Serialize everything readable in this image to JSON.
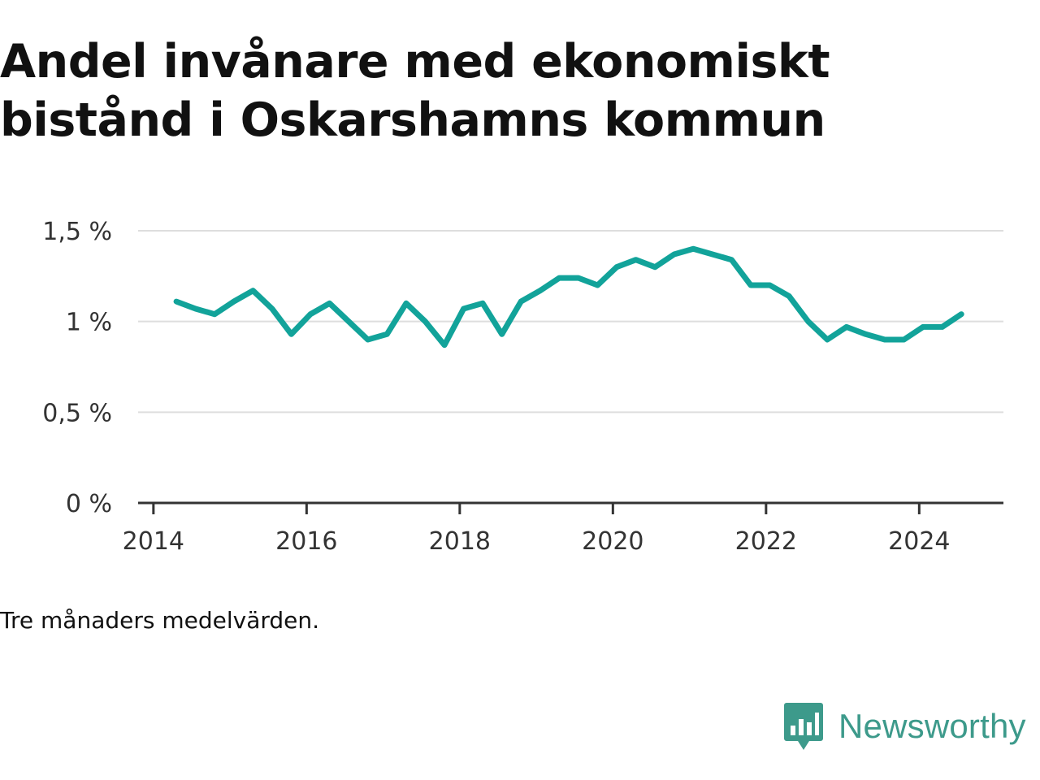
{
  "header": {
    "title_line1": "Andel invånare med ekonomiskt",
    "title_line2": "bistånd i Oskarshamns kommun"
  },
  "note": "Tre månaders medelvärden.",
  "logo": {
    "icon": "newsworthy-bar-chart-icon",
    "text": "Newsworthy",
    "color": "#3d9a8b"
  },
  "chart_data": {
    "type": "line",
    "title": "Andel invånare med ekonomiskt bistånd i Oskarshamns kommun",
    "xlabel": "",
    "ylabel": "",
    "xlim": [
      2013.8,
      2025.1
    ],
    "ylim": [
      0,
      1.5
    ],
    "x_ticks": [
      2014,
      2016,
      2018,
      2020,
      2022,
      2024
    ],
    "x_tick_labels": [
      "2014",
      "2016",
      "2018",
      "2020",
      "2022",
      "2024"
    ],
    "y_ticks": [
      0,
      0.5,
      1,
      1.5
    ],
    "y_tick_labels": [
      "0 %",
      "0,5 %",
      "1 %",
      "1,5 %"
    ],
    "grid": true,
    "color": "#12a39a",
    "series": [
      {
        "x": [
          2014.3,
          2014.55,
          2014.8,
          2015.05,
          2015.3,
          2015.55,
          2015.8,
          2016.05,
          2016.3,
          2016.55,
          2016.8,
          2017.05,
          2017.3,
          2017.55,
          2017.8,
          2018.05,
          2018.3,
          2018.55,
          2018.8,
          2019.05,
          2019.3,
          2019.55,
          2019.8,
          2020.05,
          2020.3,
          2020.55,
          2020.8,
          2021.05,
          2021.3,
          2021.55,
          2021.8,
          2022.05,
          2022.3,
          2022.55,
          2022.8,
          2023.05,
          2023.3,
          2023.55,
          2023.8,
          2024.05,
          2024.3,
          2024.55
        ],
        "y": [
          1.11,
          1.07,
          1.04,
          1.11,
          1.17,
          1.07,
          0.93,
          1.04,
          1.1,
          1.0,
          0.9,
          0.93,
          1.1,
          1.0,
          0.87,
          1.07,
          1.1,
          0.93,
          1.11,
          1.17,
          1.24,
          1.24,
          1.2,
          1.3,
          1.34,
          1.3,
          1.37,
          1.4,
          1.37,
          1.34,
          1.2,
          1.2,
          1.14,
          1.0,
          0.9,
          0.97,
          0.93,
          0.9,
          0.9,
          0.97,
          0.97,
          1.04
        ]
      }
    ]
  }
}
